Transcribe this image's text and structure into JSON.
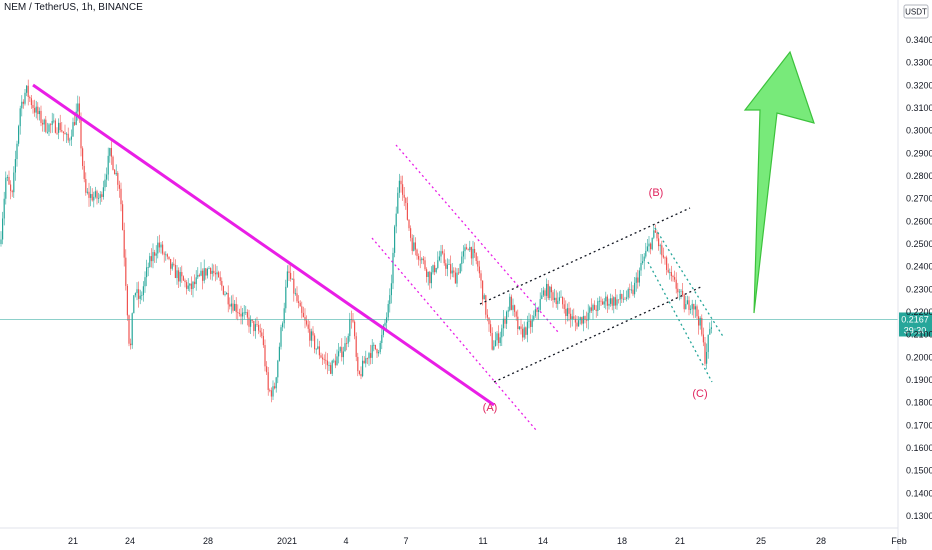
{
  "chart_data": {
    "type": "candlestick",
    "title": "NEM / TetherUS, 1h, BINANCE",
    "currency": "USDT",
    "ylim": [
      0.125,
      0.356
    ],
    "y_ticks": [
      "0.3400",
      "0.3300",
      "0.3200",
      "0.3100",
      "0.3000",
      "0.2900",
      "0.2800",
      "0.2700",
      "0.2600",
      "0.2500",
      "0.2400",
      "0.2300",
      "0.2200",
      "0.2100",
      "0.2000",
      "0.1900",
      "0.1800",
      "0.1700",
      "0.1600",
      "0.1500",
      "0.1400",
      "0.1300"
    ],
    "x_ticks": [
      "21",
      "24",
      "28",
      "2021",
      "4",
      "7",
      "11",
      "14",
      "18",
      "21",
      "25",
      "28",
      "Feb"
    ],
    "last_price": "0.2167",
    "countdown": "39:30",
    "colors": {
      "up": "#26a69a",
      "down": "#ef5350",
      "trend": "#e91ee6",
      "channel": "#131722",
      "wave": "#e0245e",
      "arrow": "#5bd65b"
    },
    "price_path": [
      [
        0,
        0.25
      ],
      [
        6,
        0.28
      ],
      [
        12,
        0.27
      ],
      [
        20,
        0.31
      ],
      [
        26,
        0.318
      ],
      [
        34,
        0.31
      ],
      [
        45,
        0.302
      ],
      [
        60,
        0.302
      ],
      [
        68,
        0.295
      ],
      [
        78,
        0.31
      ],
      [
        85,
        0.272
      ],
      [
        100,
        0.27
      ],
      [
        110,
        0.29
      ],
      [
        120,
        0.275
      ],
      [
        125,
        0.24
      ],
      [
        130,
        0.2
      ],
      [
        134,
        0.23
      ],
      [
        140,
        0.225
      ],
      [
        148,
        0.24
      ],
      [
        158,
        0.25
      ],
      [
        170,
        0.24
      ],
      [
        180,
        0.235
      ],
      [
        190,
        0.23
      ],
      [
        210,
        0.24
      ],
      [
        230,
        0.225
      ],
      [
        250,
        0.215
      ],
      [
        262,
        0.21
      ],
      [
        268,
        0.185
      ],
      [
        274,
        0.185
      ],
      [
        282,
        0.215
      ],
      [
        288,
        0.238
      ],
      [
        300,
        0.22
      ],
      [
        315,
        0.205
      ],
      [
        330,
        0.195
      ],
      [
        345,
        0.205
      ],
      [
        352,
        0.22
      ],
      [
        358,
        0.19
      ],
      [
        368,
        0.202
      ],
      [
        380,
        0.205
      ],
      [
        390,
        0.225
      ],
      [
        395,
        0.258
      ],
      [
        400,
        0.282
      ],
      [
        406,
        0.265
      ],
      [
        412,
        0.25
      ],
      [
        420,
        0.245
      ],
      [
        430,
        0.235
      ],
      [
        440,
        0.245
      ],
      [
        455,
        0.235
      ],
      [
        468,
        0.25
      ],
      [
        478,
        0.24
      ],
      [
        486,
        0.22
      ],
      [
        492,
        0.205
      ],
      [
        500,
        0.21
      ],
      [
        510,
        0.225
      ],
      [
        520,
        0.21
      ],
      [
        532,
        0.215
      ],
      [
        545,
        0.23
      ],
      [
        560,
        0.225
      ],
      [
        575,
        0.215
      ],
      [
        590,
        0.22
      ],
      [
        605,
        0.225
      ],
      [
        618,
        0.225
      ],
      [
        632,
        0.228
      ],
      [
        645,
        0.245
      ],
      [
        655,
        0.255
      ],
      [
        662,
        0.245
      ],
      [
        670,
        0.235
      ],
      [
        678,
        0.23
      ],
      [
        685,
        0.222
      ],
      [
        692,
        0.225
      ],
      [
        700,
        0.215
      ],
      [
        705,
        0.2
      ],
      [
        710,
        0.212
      ],
      [
        713,
        0.2167
      ]
    ]
  }
}
